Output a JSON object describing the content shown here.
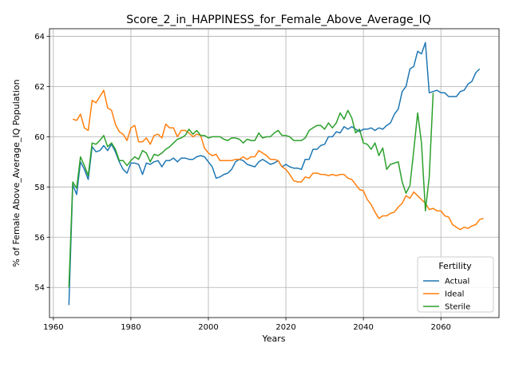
{
  "chart_data": {
    "type": "line",
    "title": "Score_2_in_HAPPINESS_for_Female_Above_Average_IQ",
    "xlabel": "Years",
    "ylabel": "% of Female Above_Average_IQ Population",
    "xlim": [
      1959,
      2075
    ],
    "ylim": [
      52.8,
      64.3
    ],
    "xticks": [
      1960,
      1980,
      2000,
      2020,
      2040,
      2060
    ],
    "yticks": [
      54,
      56,
      58,
      60,
      62,
      64
    ],
    "grid": true,
    "legend": {
      "title": "Fertility",
      "placement": "lower-right"
    },
    "series": [
      {
        "name": "Actual",
        "color": "#1f77b4",
        "points": [
          [
            1964,
            53.3
          ],
          [
            1965,
            58.1
          ],
          [
            1966,
            57.7
          ],
          [
            1967,
            59.0
          ],
          [
            1968,
            58.7
          ],
          [
            1969,
            58.3
          ],
          [
            1970,
            59.6
          ],
          [
            1971,
            59.4
          ],
          [
            1972,
            59.45
          ],
          [
            1973,
            59.65
          ],
          [
            1974,
            59.45
          ],
          [
            1975,
            59.7
          ],
          [
            1976,
            59.4
          ],
          [
            1977,
            59.0
          ],
          [
            1978,
            58.7
          ],
          [
            1979,
            58.55
          ],
          [
            1980,
            58.95
          ],
          [
            1981,
            58.95
          ],
          [
            1982,
            58.9
          ],
          [
            1983,
            58.5
          ],
          [
            1984,
            58.95
          ],
          [
            1985,
            58.9
          ],
          [
            1986,
            59.0
          ],
          [
            1987,
            59.05
          ],
          [
            1988,
            58.8
          ],
          [
            1989,
            59.05
          ],
          [
            1990,
            59.05
          ],
          [
            1991,
            59.15
          ],
          [
            1992,
            59.0
          ],
          [
            1993,
            59.15
          ],
          [
            1994,
            59.15
          ],
          [
            1995,
            59.1
          ],
          [
            1996,
            59.1
          ],
          [
            1997,
            59.2
          ],
          [
            1998,
            59.25
          ],
          [
            1999,
            59.2
          ],
          [
            2000,
            59.0
          ],
          [
            2001,
            58.8
          ],
          [
            2002,
            58.35
          ],
          [
            2003,
            58.4
          ],
          [
            2004,
            58.5
          ],
          [
            2005,
            58.55
          ],
          [
            2006,
            58.7
          ],
          [
            2007,
            59.0
          ],
          [
            2008,
            59.1
          ],
          [
            2009,
            59.05
          ],
          [
            2010,
            58.9
          ],
          [
            2011,
            58.85
          ],
          [
            2012,
            58.8
          ],
          [
            2013,
            59.0
          ],
          [
            2014,
            59.1
          ],
          [
            2015,
            59.0
          ],
          [
            2016,
            58.9
          ],
          [
            2017,
            58.95
          ],
          [
            2018,
            59.05
          ],
          [
            2019,
            58.8
          ],
          [
            2020,
            58.9
          ],
          [
            2021,
            58.8
          ],
          [
            2022,
            58.75
          ],
          [
            2023,
            58.75
          ],
          [
            2024,
            58.7
          ],
          [
            2025,
            59.1
          ],
          [
            2026,
            59.1
          ],
          [
            2027,
            59.5
          ],
          [
            2028,
            59.5
          ],
          [
            2029,
            59.65
          ],
          [
            2030,
            59.7
          ],
          [
            2031,
            60.0
          ],
          [
            2032,
            60.0
          ],
          [
            2033,
            60.2
          ],
          [
            2034,
            60.15
          ],
          [
            2035,
            60.4
          ],
          [
            2036,
            60.3
          ],
          [
            2037,
            60.4
          ],
          [
            2038,
            60.3
          ],
          [
            2039,
            60.2
          ],
          [
            2040,
            60.3
          ],
          [
            2041,
            60.3
          ],
          [
            2042,
            60.35
          ],
          [
            2043,
            60.25
          ],
          [
            2044,
            60.35
          ],
          [
            2045,
            60.3
          ],
          [
            2046,
            60.45
          ],
          [
            2047,
            60.55
          ],
          [
            2048,
            60.9
          ],
          [
            2049,
            61.1
          ],
          [
            2050,
            61.8
          ],
          [
            2051,
            62.0
          ],
          [
            2052,
            62.7
          ],
          [
            2053,
            62.8
          ],
          [
            2054,
            63.4
          ],
          [
            2055,
            63.3
          ],
          [
            2056,
            63.75
          ],
          [
            2057,
            61.75
          ],
          [
            2058,
            61.8
          ],
          [
            2059,
            61.85
          ],
          [
            2060,
            61.75
          ],
          [
            2061,
            61.75
          ],
          [
            2062,
            61.6
          ],
          [
            2063,
            61.6
          ],
          [
            2064,
            61.6
          ],
          [
            2065,
            61.8
          ],
          [
            2066,
            61.85
          ],
          [
            2067,
            62.1
          ],
          [
            2068,
            62.2
          ],
          [
            2069,
            62.55
          ],
          [
            2070,
            62.7
          ]
        ]
      },
      {
        "name": "Ideal",
        "color": "#ff7f0e",
        "points": [
          [
            1965,
            60.7
          ],
          [
            1966,
            60.65
          ],
          [
            1967,
            60.9
          ],
          [
            1968,
            60.35
          ],
          [
            1969,
            60.25
          ],
          [
            1970,
            61.45
          ],
          [
            1971,
            61.35
          ],
          [
            1972,
            61.6
          ],
          [
            1973,
            61.85
          ],
          [
            1974,
            61.15
          ],
          [
            1975,
            61.05
          ],
          [
            1976,
            60.5
          ],
          [
            1977,
            60.2
          ],
          [
            1978,
            60.1
          ],
          [
            1979,
            59.85
          ],
          [
            1980,
            60.35
          ],
          [
            1981,
            60.45
          ],
          [
            1982,
            59.8
          ],
          [
            1983,
            59.8
          ],
          [
            1984,
            59.95
          ],
          [
            1985,
            59.7
          ],
          [
            1986,
            60.05
          ],
          [
            1987,
            60.1
          ],
          [
            1988,
            59.95
          ],
          [
            1989,
            60.5
          ],
          [
            1990,
            60.35
          ],
          [
            1991,
            60.35
          ],
          [
            1992,
            60.0
          ],
          [
            1993,
            60.25
          ],
          [
            1994,
            60.25
          ],
          [
            1995,
            60.15
          ],
          [
            1996,
            60.0
          ],
          [
            1997,
            60.1
          ],
          [
            1998,
            60.05
          ],
          [
            1999,
            59.55
          ],
          [
            2000,
            59.35
          ],
          [
            2001,
            59.25
          ],
          [
            2002,
            59.3
          ],
          [
            2003,
            59.05
          ],
          [
            2004,
            59.05
          ],
          [
            2005,
            59.05
          ],
          [
            2006,
            59.05
          ],
          [
            2007,
            59.1
          ],
          [
            2008,
            59.1
          ],
          [
            2009,
            59.2
          ],
          [
            2010,
            59.1
          ],
          [
            2011,
            59.2
          ],
          [
            2012,
            59.2
          ],
          [
            2013,
            59.45
          ],
          [
            2014,
            59.35
          ],
          [
            2015,
            59.25
          ],
          [
            2016,
            59.1
          ],
          [
            2017,
            59.1
          ],
          [
            2018,
            59.05
          ],
          [
            2019,
            58.8
          ],
          [
            2020,
            58.7
          ],
          [
            2021,
            58.5
          ],
          [
            2022,
            58.25
          ],
          [
            2023,
            58.2
          ],
          [
            2024,
            58.2
          ],
          [
            2025,
            58.4
          ],
          [
            2026,
            58.35
          ],
          [
            2027,
            58.55
          ],
          [
            2028,
            58.55
          ],
          [
            2029,
            58.5
          ],
          [
            2030,
            58.5
          ],
          [
            2031,
            58.45
          ],
          [
            2032,
            58.5
          ],
          [
            2033,
            58.45
          ],
          [
            2034,
            58.5
          ],
          [
            2035,
            58.5
          ],
          [
            2036,
            58.35
          ],
          [
            2037,
            58.3
          ],
          [
            2038,
            58.1
          ],
          [
            2039,
            57.9
          ],
          [
            2040,
            57.85
          ],
          [
            2041,
            57.5
          ],
          [
            2042,
            57.3
          ],
          [
            2043,
            57.0
          ],
          [
            2044,
            56.75
          ],
          [
            2045,
            56.85
          ],
          [
            2046,
            56.85
          ],
          [
            2047,
            56.95
          ],
          [
            2048,
            57.0
          ],
          [
            2049,
            57.2
          ],
          [
            2050,
            57.35
          ],
          [
            2051,
            57.65
          ],
          [
            2052,
            57.55
          ],
          [
            2053,
            57.8
          ],
          [
            2054,
            57.65
          ],
          [
            2055,
            57.5
          ],
          [
            2056,
            57.35
          ],
          [
            2057,
            57.1
          ],
          [
            2058,
            57.15
          ],
          [
            2059,
            57.05
          ],
          [
            2060,
            57.05
          ],
          [
            2061,
            56.85
          ],
          [
            2062,
            56.8
          ],
          [
            2063,
            56.5
          ],
          [
            2064,
            56.4
          ],
          [
            2065,
            56.3
          ],
          [
            2066,
            56.4
          ],
          [
            2067,
            56.35
          ],
          [
            2068,
            56.45
          ],
          [
            2069,
            56.5
          ],
          [
            2070,
            56.7
          ],
          [
            2071,
            56.75
          ]
        ]
      },
      {
        "name": "Sterile",
        "color": "#2ca02c",
        "points": [
          [
            1964,
            54.0
          ],
          [
            1965,
            58.2
          ],
          [
            1966,
            57.95
          ],
          [
            1967,
            59.2
          ],
          [
            1968,
            58.85
          ],
          [
            1969,
            58.45
          ],
          [
            1970,
            59.75
          ],
          [
            1971,
            59.7
          ],
          [
            1972,
            59.85
          ],
          [
            1973,
            60.05
          ],
          [
            1974,
            59.6
          ],
          [
            1975,
            59.75
          ],
          [
            1976,
            59.5
          ],
          [
            1977,
            59.05
          ],
          [
            1978,
            59.05
          ],
          [
            1979,
            58.85
          ],
          [
            1980,
            59.05
          ],
          [
            1981,
            59.2
          ],
          [
            1982,
            59.1
          ],
          [
            1983,
            59.45
          ],
          [
            1984,
            59.35
          ],
          [
            1985,
            59.0
          ],
          [
            1986,
            59.3
          ],
          [
            1987,
            59.25
          ],
          [
            1988,
            59.35
          ],
          [
            1989,
            59.5
          ],
          [
            1990,
            59.6
          ],
          [
            1991,
            59.75
          ],
          [
            1992,
            59.9
          ],
          [
            1993,
            59.95
          ],
          [
            1994,
            60.05
          ],
          [
            1995,
            60.3
          ],
          [
            1996,
            60.1
          ],
          [
            1997,
            60.25
          ],
          [
            1998,
            60.05
          ],
          [
            1999,
            60.05
          ],
          [
            2000,
            59.95
          ],
          [
            2001,
            60.0
          ],
          [
            2002,
            60.0
          ],
          [
            2003,
            60.0
          ],
          [
            2004,
            59.9
          ],
          [
            2005,
            59.85
          ],
          [
            2006,
            59.95
          ],
          [
            2007,
            59.95
          ],
          [
            2008,
            59.9
          ],
          [
            2009,
            59.75
          ],
          [
            2010,
            59.9
          ],
          [
            2011,
            59.85
          ],
          [
            2012,
            59.85
          ],
          [
            2013,
            60.15
          ],
          [
            2014,
            59.95
          ],
          [
            2015,
            60.0
          ],
          [
            2016,
            60.0
          ],
          [
            2017,
            60.15
          ],
          [
            2018,
            60.25
          ],
          [
            2019,
            60.05
          ],
          [
            2020,
            60.05
          ],
          [
            2021,
            60.0
          ],
          [
            2022,
            59.85
          ],
          [
            2023,
            59.85
          ],
          [
            2024,
            59.85
          ],
          [
            2025,
            59.95
          ],
          [
            2026,
            60.25
          ],
          [
            2027,
            60.35
          ],
          [
            2028,
            60.45
          ],
          [
            2029,
            60.45
          ],
          [
            2030,
            60.3
          ],
          [
            2031,
            60.55
          ],
          [
            2032,
            60.35
          ],
          [
            2033,
            60.55
          ],
          [
            2034,
            60.95
          ],
          [
            2035,
            60.7
          ],
          [
            2036,
            61.05
          ],
          [
            2037,
            60.75
          ],
          [
            2038,
            60.15
          ],
          [
            2039,
            60.3
          ],
          [
            2040,
            59.75
          ],
          [
            2041,
            59.7
          ],
          [
            2042,
            59.5
          ],
          [
            2043,
            59.75
          ],
          [
            2044,
            59.25
          ],
          [
            2045,
            59.55
          ],
          [
            2046,
            58.7
          ],
          [
            2047,
            58.9
          ],
          [
            2048,
            58.95
          ],
          [
            2049,
            59.0
          ],
          [
            2050,
            58.2
          ],
          [
            2051,
            57.75
          ],
          [
            2052,
            58.05
          ],
          [
            2053,
            59.45
          ],
          [
            2054,
            60.95
          ],
          [
            2055,
            59.75
          ],
          [
            2056,
            57.05
          ],
          [
            2057,
            58.4
          ],
          [
            2058,
            61.75
          ]
        ]
      }
    ]
  }
}
